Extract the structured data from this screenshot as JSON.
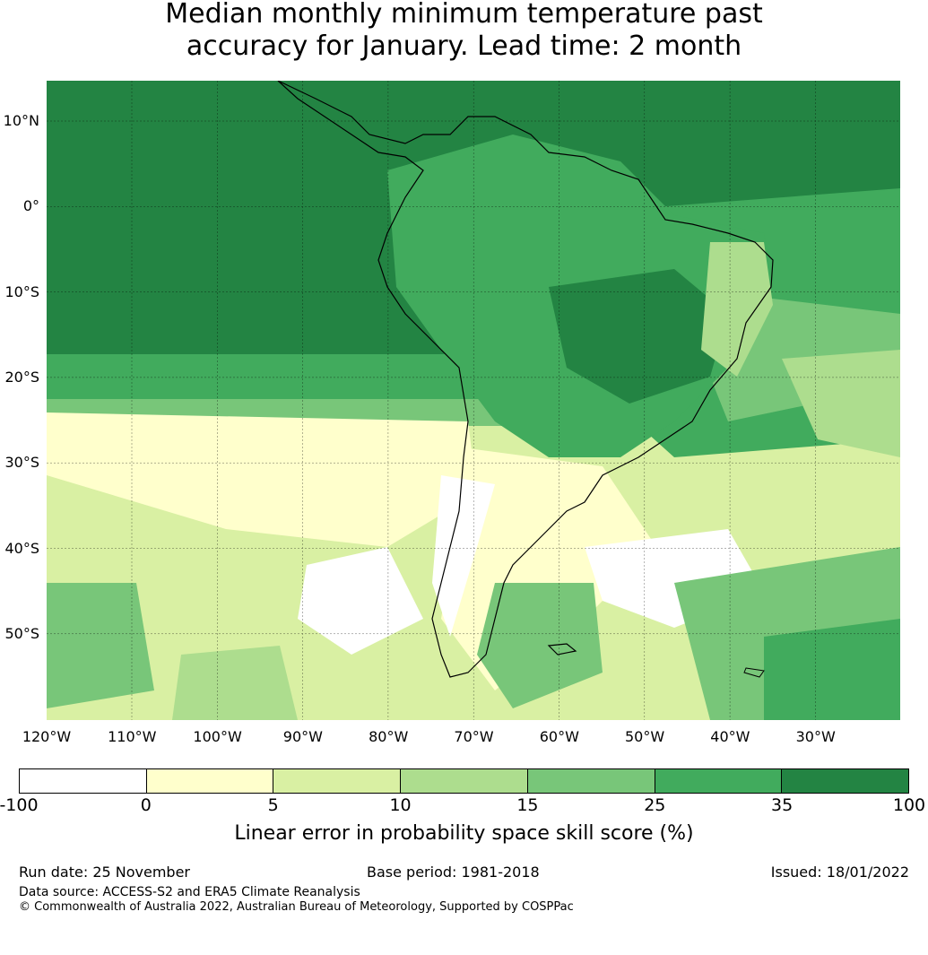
{
  "title": {
    "line1": "Median monthly minimum temperature past",
    "line2": "accuracy for January. Lead time: 2 month"
  },
  "map": {
    "lat_labels": [
      "10°N",
      "0°",
      "10°S",
      "20°S",
      "30°S",
      "40°S",
      "50°S"
    ],
    "lon_labels": [
      "120°W",
      "110°W",
      "100°W",
      "90°W",
      "80°W",
      "70°W",
      "60°W",
      "50°W",
      "40°W",
      "30°W"
    ],
    "background_color": "#41a85f",
    "coastline_color": "#000000"
  },
  "colorbar": {
    "ticks": [
      "-100",
      "0",
      "5",
      "10",
      "15",
      "25",
      "35",
      "100"
    ],
    "colors": [
      "#ffffff",
      "#ffffcc",
      "#d9f0a3",
      "#addd8e",
      "#78c679",
      "#41ab5d",
      "#238443"
    ],
    "label": "Linear error in probability space skill score (%)"
  },
  "footer": {
    "run_date": "Run date: 25 November",
    "base_period": "Base period: 1981-2018",
    "issued": "Issued: 18/01/2022",
    "data_source": "Data source: ACCESS-S2 and ERA5 Climate Reanalysis",
    "copyright": "© Commonwealth of Australia 2022, Australian Bureau of Meteorology, Supported by COSPPac"
  }
}
